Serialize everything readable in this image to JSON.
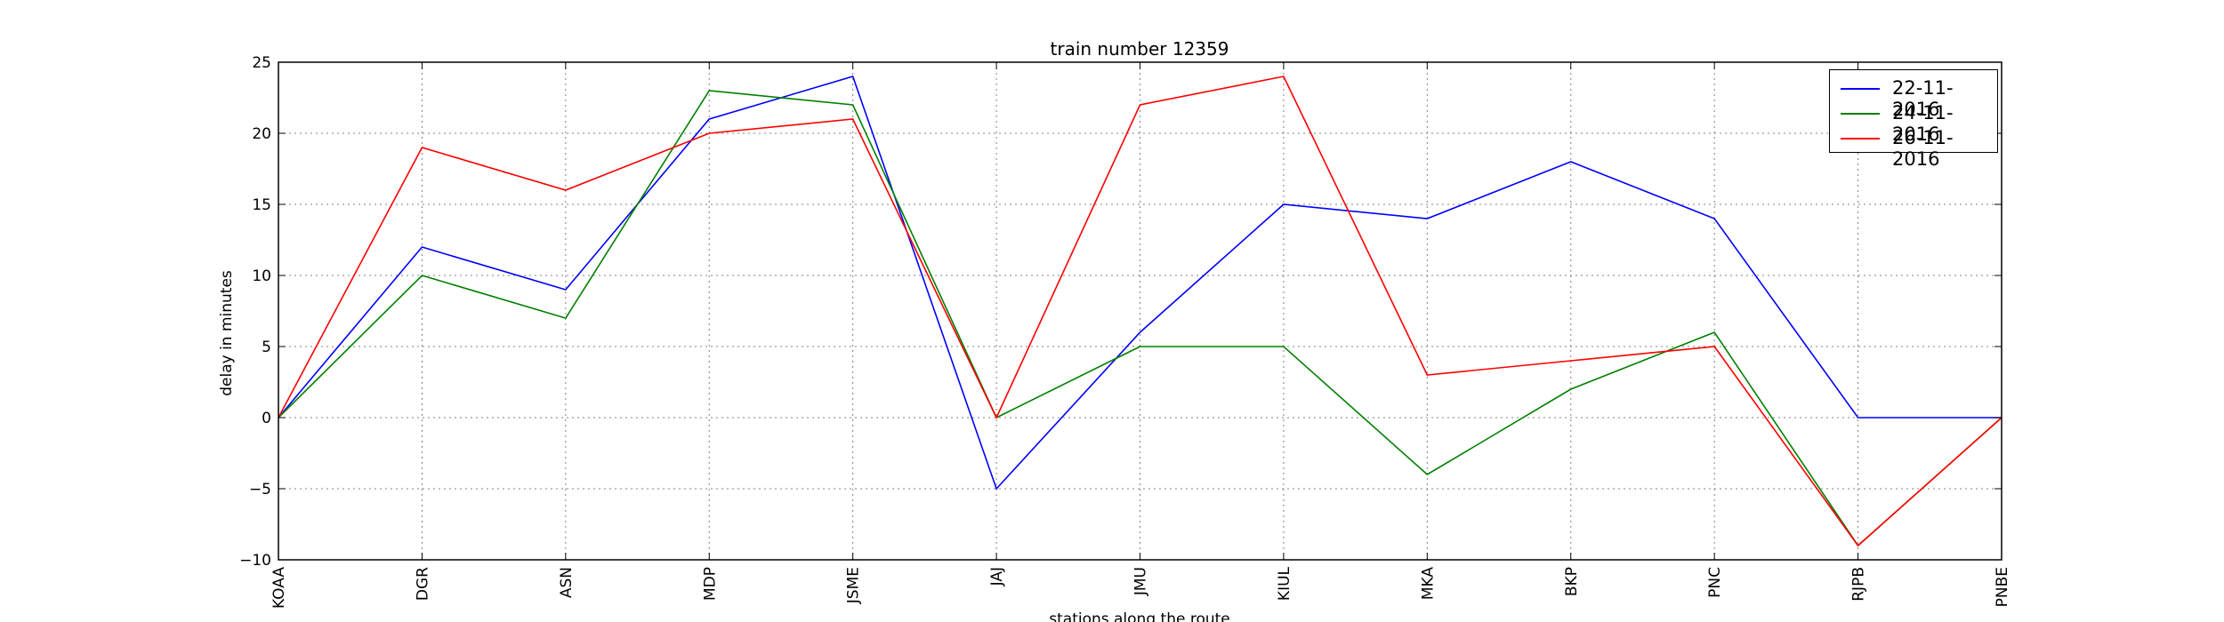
{
  "chart_data": {
    "type": "line",
    "title": "train number 12359",
    "xlabel": "stations along the route",
    "ylabel": "delay in minutes",
    "categories": [
      "KOAA",
      "DGR",
      "ASN",
      "MDP",
      "JSME",
      "JAJ",
      "JMU",
      "KIUL",
      "MKA",
      "BKP",
      "PNC",
      "RJPB",
      "PNBE"
    ],
    "ylim": [
      -10,
      25
    ],
    "yticks": [
      -10,
      -5,
      0,
      5,
      10,
      15,
      20,
      25
    ],
    "ytick_labels": [
      "−10",
      "−5",
      "0",
      "5",
      "10",
      "15",
      "20",
      "25"
    ],
    "grid": true,
    "legend_position": "top-right",
    "series": [
      {
        "name": "22-11-2016",
        "color": "#0000ff",
        "values": [
          0,
          12,
          9,
          21,
          24,
          -5,
          6,
          15,
          14,
          18,
          14,
          0,
          0
        ]
      },
      {
        "name": "24-11-2016",
        "color": "#008000",
        "values": [
          0,
          10,
          7,
          23,
          22,
          0,
          5,
          5,
          -4,
          2,
          6,
          -9,
          0
        ]
      },
      {
        "name": "26-11-2016",
        "color": "#ff0000",
        "values": [
          0,
          19,
          16,
          20,
          21,
          0,
          22,
          24,
          3,
          4,
          5,
          -9,
          0
        ]
      }
    ]
  }
}
